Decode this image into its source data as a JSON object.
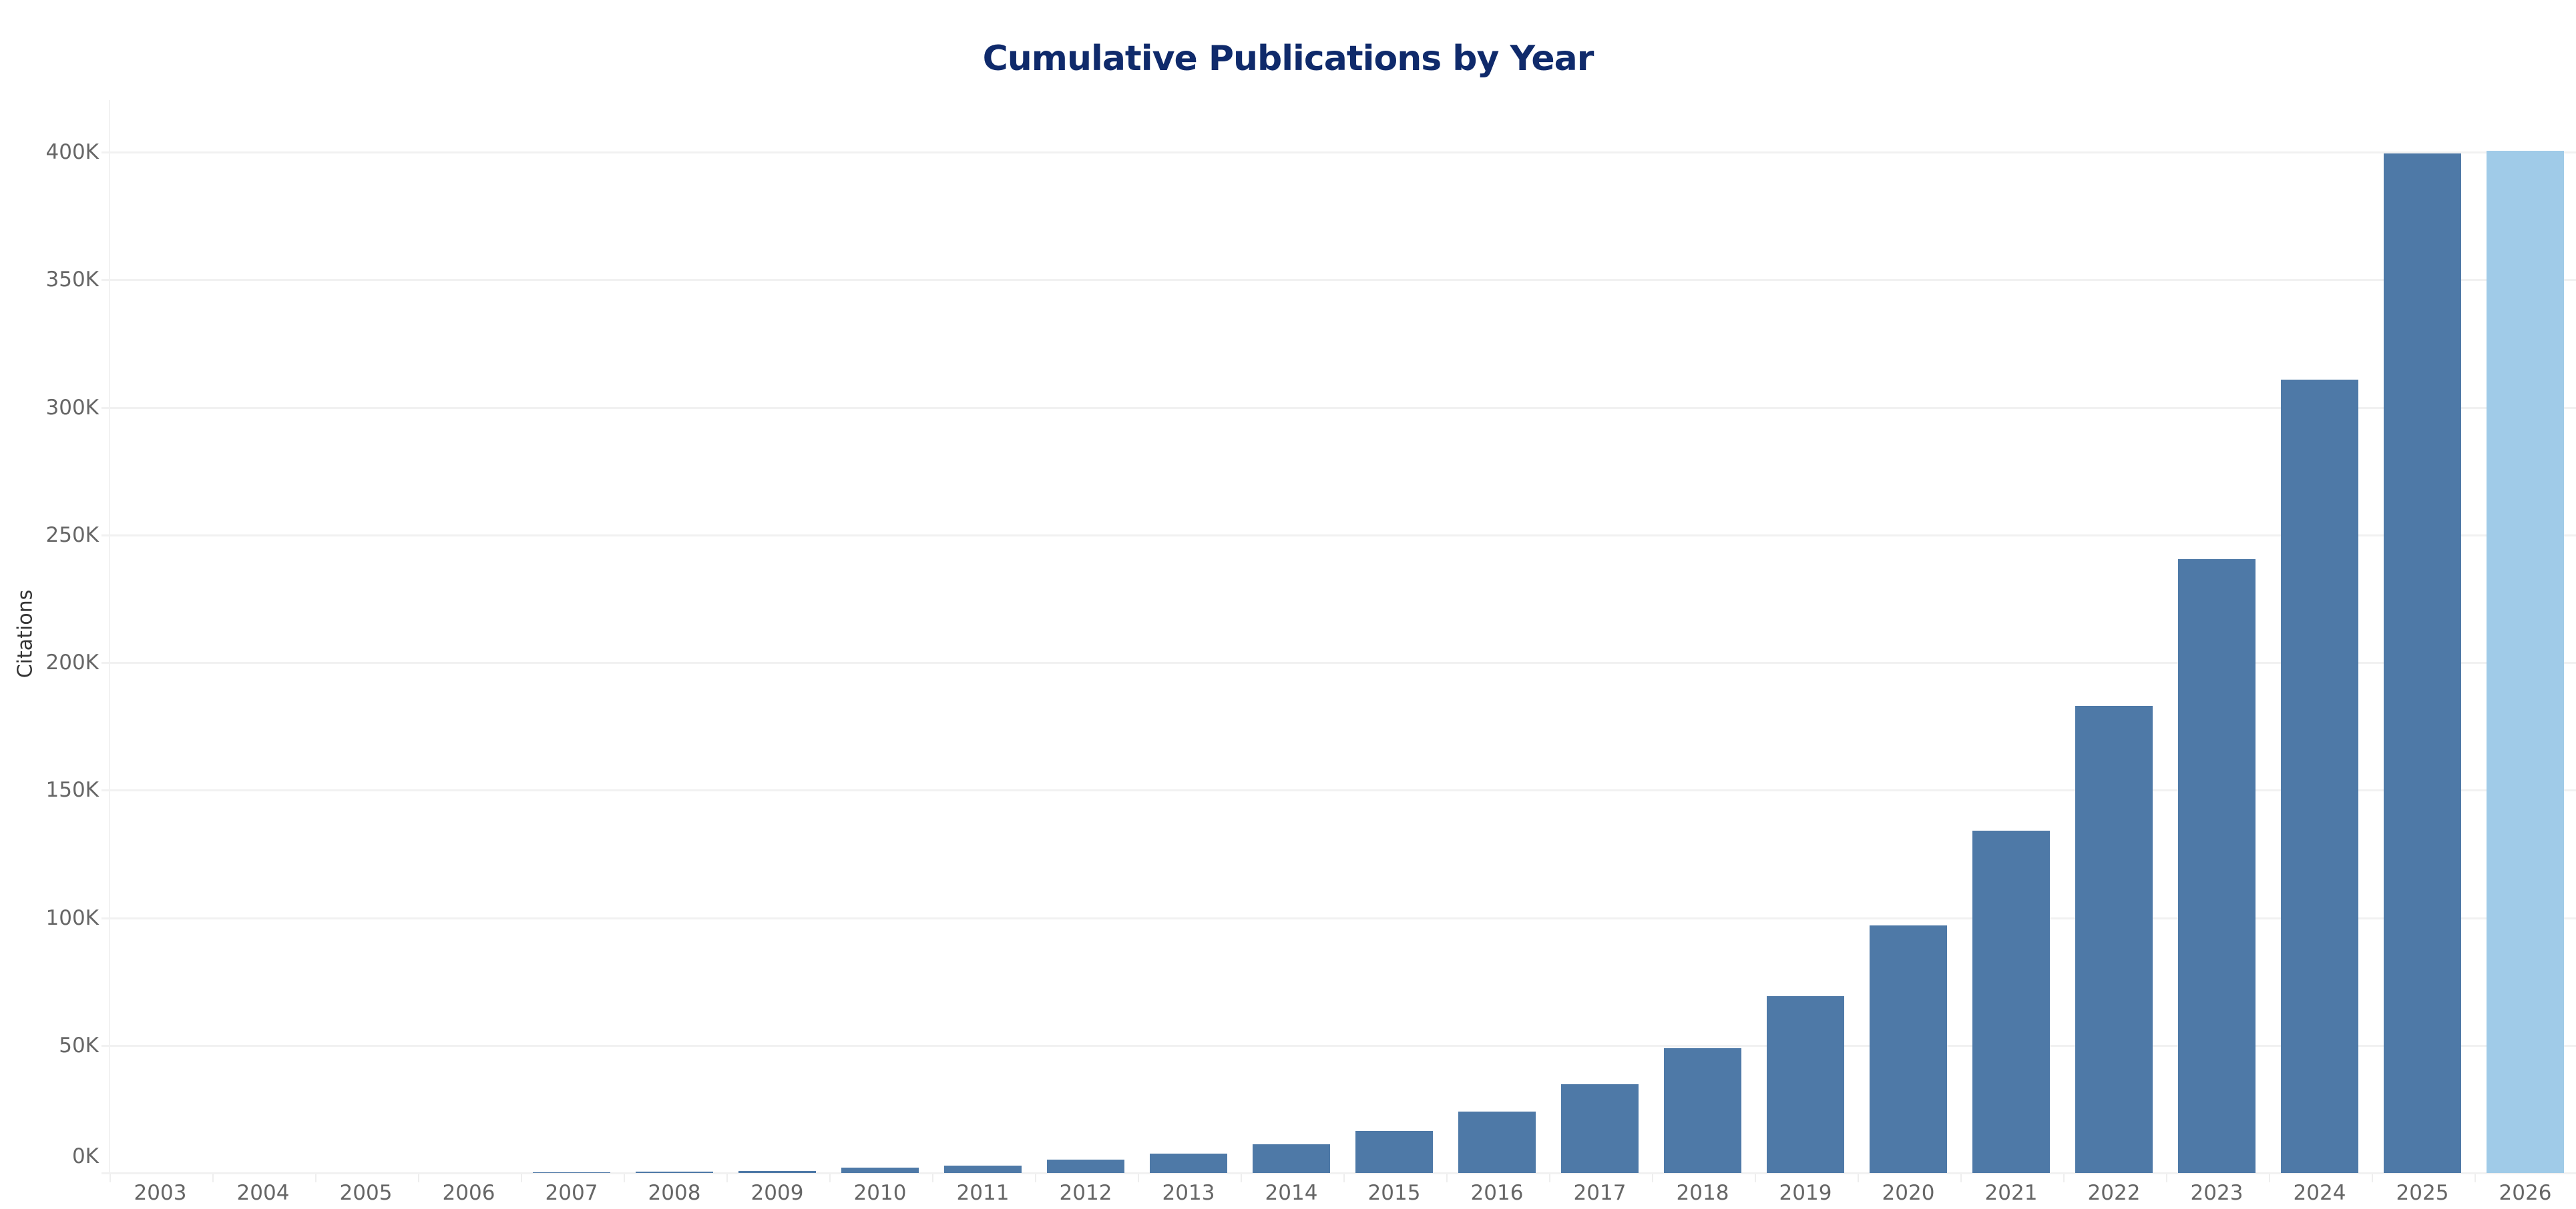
{
  "title": "Cumulative Publications by Year",
  "y_axis_title": "Citations",
  "colors": {
    "title": "#0f2a6b",
    "bar": "#4e79a7",
    "bar_highlight": "#a0cbe8",
    "gridline": "#f1f1f1",
    "tick_label": "#666666"
  },
  "y_ticks": [
    "0K",
    "50K",
    "100K",
    "150K",
    "200K",
    "250K",
    "300K",
    "350K",
    "400K"
  ],
  "chart_data": {
    "type": "bar",
    "title": "Cumulative Publications by Year",
    "xlabel": "",
    "ylabel": "Citations",
    "ylim": [
      0,
      400000
    ],
    "grid": true,
    "legend": null,
    "y_tick_labels": [
      "0K",
      "50K",
      "100K",
      "150K",
      "200K",
      "250K",
      "300K",
      "350K",
      "400K"
    ],
    "categories": [
      "2003",
      "2004",
      "2005",
      "2006",
      "2007",
      "2008",
      "2009",
      "2010",
      "2011",
      "2012",
      "2013",
      "2014",
      "2015",
      "2016",
      "2017",
      "2018",
      "2019",
      "2020",
      "2021",
      "2022",
      "2023",
      "2024",
      "2025",
      "2026"
    ],
    "values": [
      0,
      0,
      0,
      0,
      300,
      400,
      900,
      2000,
      3000,
      5100,
      7700,
      11300,
      16600,
      24000,
      34800,
      48900,
      69400,
      97100,
      134200,
      182900,
      240400,
      310800,
      399500,
      400500
    ],
    "highlighted_categories": [
      "2026"
    ]
  }
}
